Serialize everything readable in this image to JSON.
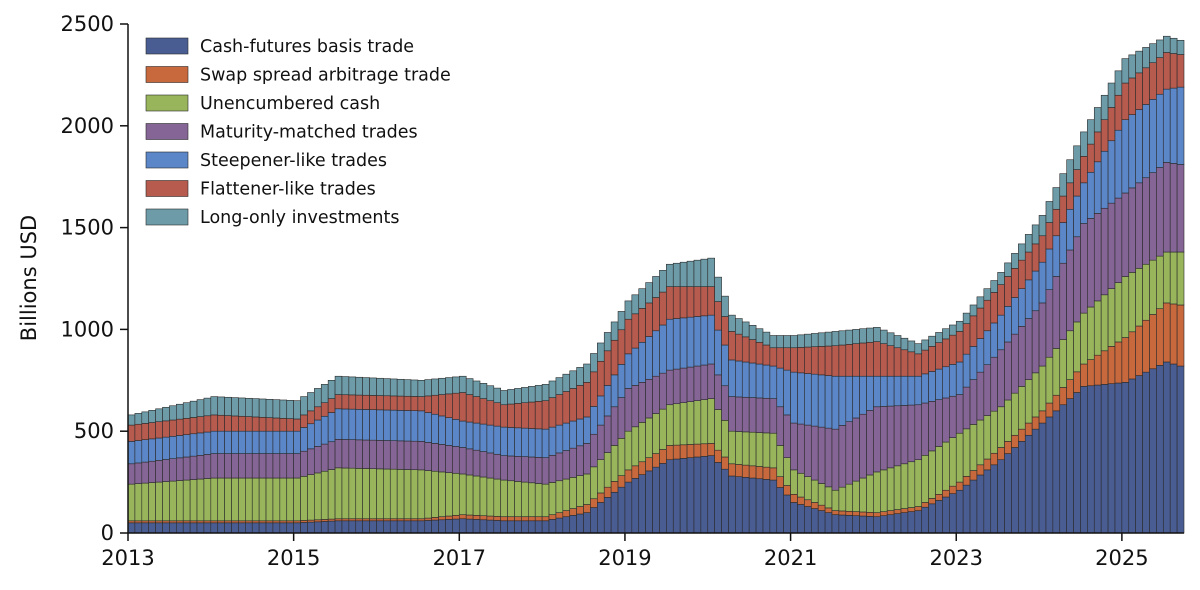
{
  "chart_data": {
    "type": "bar",
    "stacked": true,
    "ylabel": "Billions USD",
    "ylim": [
      0,
      2500
    ],
    "y_ticks": [
      "0",
      "500",
      "1000",
      "1500",
      "2000",
      "2500"
    ],
    "x_ticks": [
      "2013",
      "2015",
      "2017",
      "2019",
      "2021",
      "2023",
      "2025"
    ],
    "frequency": "monthly",
    "start": "2013-01",
    "end": "2025-09",
    "legend_position": "top-left",
    "anchors": [
      {
        "date": "2013-01",
        "values": [
          50,
          10,
          180,
          100,
          110,
          80,
          50
        ]
      },
      {
        "date": "2014-01",
        "values": [
          50,
          10,
          210,
          120,
          110,
          80,
          90
        ]
      },
      {
        "date": "2015-01",
        "values": [
          50,
          10,
          210,
          120,
          110,
          60,
          90
        ]
      },
      {
        "date": "2015-07",
        "values": [
          60,
          10,
          250,
          140,
          150,
          70,
          90
        ]
      },
      {
        "date": "2016-07",
        "values": [
          60,
          10,
          240,
          140,
          150,
          70,
          80
        ]
      },
      {
        "date": "2017-01",
        "values": [
          70,
          20,
          200,
          130,
          130,
          140,
          80
        ]
      },
      {
        "date": "2017-07",
        "values": [
          60,
          20,
          180,
          120,
          140,
          110,
          70
        ]
      },
      {
        "date": "2018-01",
        "values": [
          60,
          20,
          160,
          130,
          140,
          140,
          80
        ]
      },
      {
        "date": "2018-07",
        "values": [
          100,
          40,
          150,
          150,
          130,
          170,
          90
        ]
      },
      {
        "date": "2019-01",
        "values": [
          250,
          60,
          190,
          210,
          170,
          170,
          90
        ]
      },
      {
        "date": "2019-07",
        "values": [
          360,
          70,
          200,
          170,
          250,
          160,
          110
        ]
      },
      {
        "date": "2020-01",
        "values": [
          380,
          60,
          220,
          170,
          240,
          140,
          140
        ]
      },
      {
        "date": "2020-04",
        "values": [
          280,
          60,
          160,
          170,
          180,
          140,
          80
        ]
      },
      {
        "date": "2020-10",
        "values": [
          260,
          60,
          170,
          170,
          160,
          90,
          60
        ]
      },
      {
        "date": "2021-01",
        "values": [
          150,
          40,
          120,
          230,
          250,
          120,
          60
        ]
      },
      {
        "date": "2021-07",
        "values": [
          90,
          20,
          100,
          300,
          260,
          150,
          70
        ]
      },
      {
        "date": "2022-01",
        "values": [
          80,
          20,
          200,
          320,
          150,
          170,
          70
        ]
      },
      {
        "date": "2022-07",
        "values": [
          110,
          20,
          230,
          270,
          140,
          110,
          50
        ]
      },
      {
        "date": "2023-01",
        "values": [
          210,
          40,
          240,
          190,
          160,
          150,
          50
        ]
      },
      {
        "date": "2023-07",
        "values": [
          360,
          60,
          200,
          280,
          170,
          150,
          60
        ]
      },
      {
        "date": "2024-01",
        "values": [
          540,
          60,
          220,
          310,
          200,
          130,
          100
        ]
      },
      {
        "date": "2024-07",
        "values": [
          720,
          110,
          250,
          440,
          200,
          130,
          120
        ]
      },
      {
        "date": "2025-01",
        "values": [
          740,
          220,
          300,
          410,
          360,
          180,
          120
        ]
      },
      {
        "date": "2025-07",
        "values": [
          840,
          290,
          250,
          440,
          360,
          180,
          80
        ]
      },
      {
        "date": "2025-09",
        "values": [
          820,
          300,
          260,
          430,
          380,
          160,
          70
        ]
      }
    ],
    "series": [
      {
        "name": "Cash-futures basis trade",
        "color": "#4a5d93"
      },
      {
        "name": "Swap spread arbitrage trade",
        "color": "#c7683d"
      },
      {
        "name": "Unencumbered cash",
        "color": "#98b55c"
      },
      {
        "name": "Maturity-matched trades",
        "color": "#856595"
      },
      {
        "name": "Steepener-like trades",
        "color": "#5b86c8"
      },
      {
        "name": "Flattener-like trades",
        "color": "#b75b4f"
      },
      {
        "name": "Long-only investments",
        "color": "#6d9ca8"
      }
    ]
  }
}
